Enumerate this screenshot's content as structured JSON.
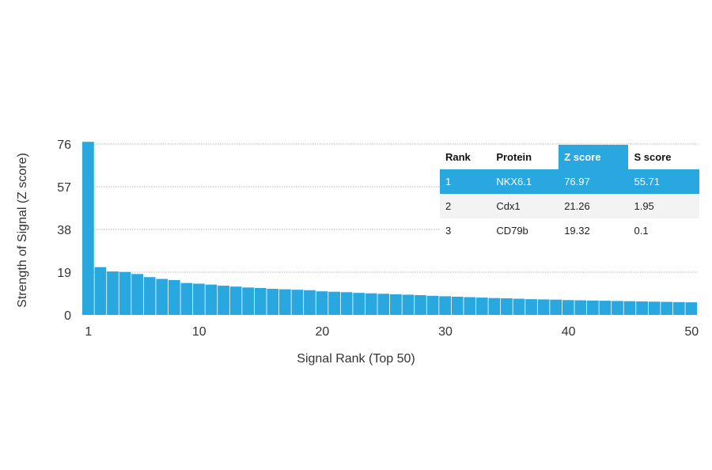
{
  "chart_data": {
    "type": "bar",
    "xlabel": "Signal Rank (Top 50)",
    "ylabel": "Strength of Signal (Z score)",
    "ylim": [
      0,
      76
    ],
    "y_ticks": [
      0,
      19,
      38,
      57,
      76
    ],
    "x_ticks": [
      1,
      10,
      20,
      30,
      40,
      50
    ],
    "grid": "horizontal dotted",
    "bar_color": "#29a8e0",
    "x": [
      1,
      2,
      3,
      4,
      5,
      6,
      7,
      8,
      9,
      10,
      11,
      12,
      13,
      14,
      15,
      16,
      17,
      18,
      19,
      20,
      21,
      22,
      23,
      24,
      25,
      26,
      27,
      28,
      29,
      30,
      31,
      32,
      33,
      34,
      35,
      36,
      37,
      38,
      39,
      40,
      41,
      42,
      43,
      44,
      45,
      46,
      47,
      48,
      49,
      50
    ],
    "values": [
      76.97,
      21.26,
      19.32,
      19.1,
      18.2,
      16.8,
      16.0,
      15.5,
      14.2,
      13.9,
      13.5,
      13.0,
      12.6,
      12.2,
      12.0,
      11.6,
      11.4,
      11.2,
      11.0,
      10.5,
      10.3,
      10.1,
      9.8,
      9.6,
      9.4,
      9.2,
      9.0,
      8.8,
      8.5,
      8.3,
      8.1,
      7.9,
      7.7,
      7.5,
      7.4,
      7.2,
      7.0,
      6.9,
      6.8,
      6.6,
      6.5,
      6.4,
      6.3,
      6.2,
      6.1,
      6.0,
      5.9,
      5.8,
      5.7,
      5.6
    ]
  },
  "table": {
    "columns": [
      "Rank",
      "Protein",
      "Z score",
      "S score"
    ],
    "highlight_color": "#29a8e0",
    "rows": [
      [
        "1",
        "NKX6.1",
        "76.97",
        "55.71"
      ],
      [
        "2",
        "Cdx1",
        "21.26",
        "1.95"
      ],
      [
        "3",
        "CD79b",
        "19.32",
        "0.1"
      ]
    ]
  }
}
